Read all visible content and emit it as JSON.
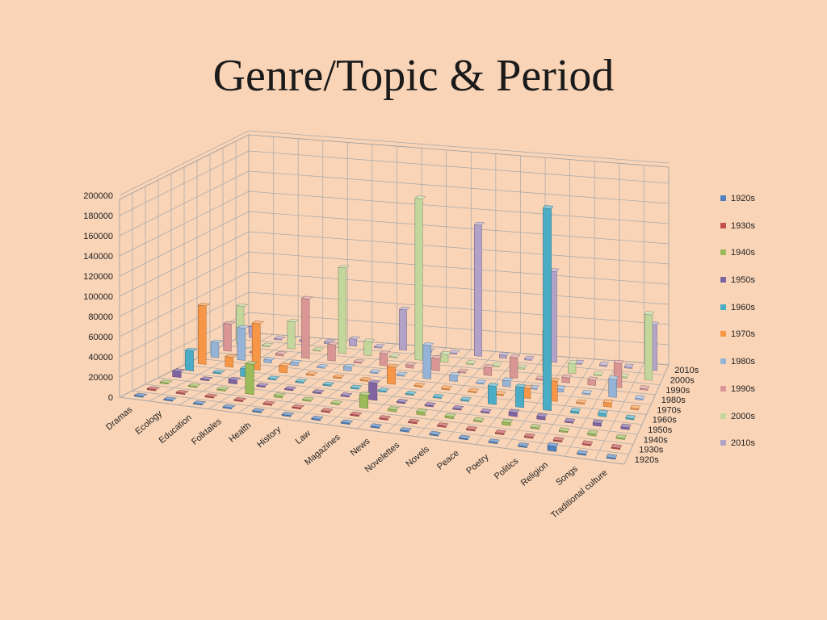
{
  "title": "Genre/Topic & Period",
  "chart_data": {
    "type": "bar3d",
    "title": "",
    "categories": [
      "Dramas",
      "Ecology",
      "Education",
      "Folktales",
      "Health",
      "History",
      "Law",
      "Magazines",
      "News",
      "Novelettes",
      "Novels",
      "Peace",
      "Poetry",
      "Politics",
      "Religion",
      "Songs",
      "Traditional culture"
    ],
    "ylim": [
      0,
      200000
    ],
    "yticks": [
      0,
      20000,
      40000,
      60000,
      80000,
      100000,
      120000,
      140000,
      160000,
      180000,
      200000
    ],
    "grid": true,
    "legend_position": "right",
    "series": [
      {
        "name": "1920s",
        "color": "#4f81bd",
        "values": [
          0,
          0,
          0,
          0,
          0,
          0,
          0,
          0,
          0,
          0,
          0,
          0,
          0,
          0,
          5000,
          0,
          0
        ]
      },
      {
        "name": "1930s",
        "color": "#c0504d",
        "values": [
          0,
          0,
          0,
          0,
          0,
          0,
          0,
          0,
          0,
          0,
          0,
          0,
          0,
          0,
          0,
          0,
          0
        ]
      },
      {
        "name": "1940s",
        "color": "#9bbb59",
        "values": [
          0,
          0,
          0,
          30000,
          2000,
          0,
          0,
          13000,
          2000,
          3000,
          2000,
          0,
          3000,
          0,
          0,
          2000,
          0
        ]
      },
      {
        "name": "1950s",
        "color": "#8064a2",
        "values": [
          6000,
          1000,
          4000,
          0,
          0,
          0,
          0,
          17000,
          0,
          0,
          0,
          0,
          4000,
          3000,
          0,
          3000,
          2000
        ]
      },
      {
        "name": "1960s",
        "color": "#4bacc6",
        "values": [
          20000,
          0,
          8000,
          0,
          0,
          0,
          0,
          0,
          0,
          0,
          0,
          18000,
          20000,
          200000,
          2000,
          3000,
          0
        ]
      },
      {
        "name": "1970s",
        "color": "#f79646",
        "values": [
          58000,
          10000,
          46000,
          7000,
          0,
          0,
          0,
          17000,
          0,
          0,
          0,
          0,
          10000,
          20000,
          0,
          4000,
          0
        ]
      },
      {
        "name": "1980s",
        "color": "#95b3d7",
        "values": [
          15000,
          32000,
          3000,
          3000,
          0,
          4000,
          0,
          0,
          33000,
          6000,
          0,
          6000,
          0,
          3000,
          0,
          18000,
          0
        ]
      },
      {
        "name": "1990s",
        "color": "#d99694",
        "values": [
          27000,
          0,
          2000,
          59000,
          16000,
          0,
          12000,
          3000,
          12000,
          0,
          8000,
          20000,
          0,
          5000,
          5000,
          24000,
          0
        ]
      },
      {
        "name": "2000s",
        "color": "#c3d69b",
        "values": [
          38000,
          0,
          27000,
          0,
          85000,
          14000,
          0,
          160000,
          8000,
          0,
          0,
          0,
          40000,
          10000,
          0,
          0,
          65000
        ]
      },
      {
        "name": "2010s",
        "color": "#b2a2c7",
        "values": [
          11000,
          0,
          0,
          2000,
          7000,
          0,
          40000,
          0,
          0,
          130000,
          3000,
          0,
          90000,
          0,
          0,
          0,
          45000
        ]
      }
    ]
  }
}
